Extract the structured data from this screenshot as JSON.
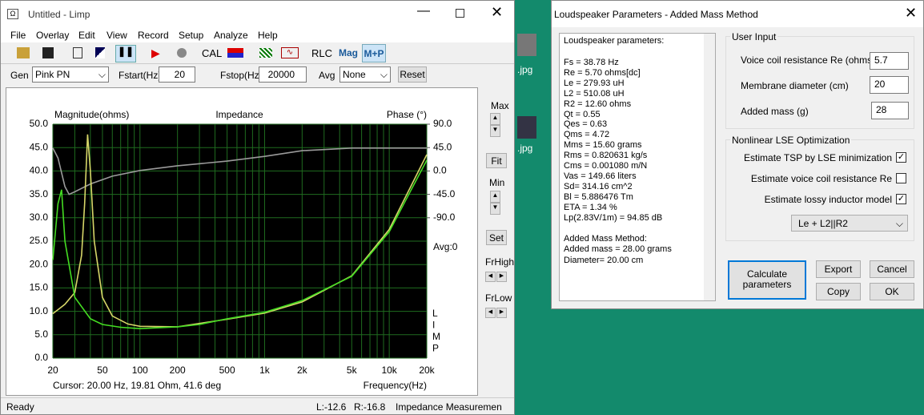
{
  "desktop": {
    "files": [
      ".jpg",
      ".jpg"
    ]
  },
  "limp": {
    "title": "Untitled - Limp",
    "menu": [
      "File",
      "Overlay",
      "Edit",
      "View",
      "Record",
      "Setup",
      "Analyze",
      "Help"
    ],
    "toolbar": {
      "cal": "CAL",
      "rlc": "RLC",
      "mag": "Mag",
      "mp": "M+P"
    },
    "gen": {
      "label": "Gen",
      "signal": "Pink PN",
      "fstart_label": "Fstart(Hz)",
      "fstart": 20,
      "fstop_label": "Fstop(Hz)",
      "fstop": 20000,
      "avg_label": "Avg",
      "avg": "None",
      "reset": "Reset"
    },
    "chart": {
      "type": "line",
      "title": "Impedance",
      "y_label": "Magnitude(ohms)",
      "y2_label": "Phase (°)",
      "avg": "Avg:0",
      "brand": [
        "L",
        "I",
        "M",
        "P"
      ],
      "cursor": "Cursor: 20.00 Hz, 19.81 Ohm, 41.6 deg",
      "x_label": "Frequency(Hz)",
      "xscale": "log",
      "xlim": [
        20,
        20000
      ],
      "ylim": [
        0,
        50
      ],
      "y2lim": [
        -360,
        90
      ],
      "xticks": [
        20,
        50,
        100,
        200,
        500,
        {
          "value": 1000,
          "label": "1k"
        },
        {
          "value": 2000,
          "label": "2k"
        },
        {
          "value": 5000,
          "label": "5k"
        },
        {
          "value": 10000,
          "label": "10k"
        },
        {
          "value": 20000,
          "label": "20k"
        }
      ],
      "xgrid": [
        30,
        40,
        60,
        70,
        80,
        90,
        300,
        400,
        600,
        700,
        800,
        900,
        3000,
        4000,
        6000,
        7000,
        8000,
        9000
      ],
      "yticks": [
        {
          "value": 0,
          "label": "0.0"
        },
        {
          "value": 5,
          "label": "5.0"
        },
        {
          "value": 10,
          "label": "10.0"
        },
        {
          "value": 15,
          "label": "15.0"
        },
        {
          "value": 20,
          "label": "20.0"
        },
        {
          "value": 25,
          "label": "25.0"
        },
        {
          "value": 30,
          "label": "30.0"
        },
        {
          "value": 35,
          "label": "35.0"
        },
        {
          "value": 40,
          "label": "40.0"
        },
        {
          "value": 45,
          "label": "45.0"
        },
        {
          "value": 50,
          "label": "50.0"
        }
      ],
      "y2ticks": [
        {
          "value": 90,
          "label": "90.0"
        },
        {
          "value": 45,
          "label": "45.0"
        },
        {
          "value": 0,
          "label": "0.0"
        },
        {
          "value": -45,
          "label": "-45.0"
        },
        {
          "value": -90,
          "label": "-90.0"
        }
      ],
      "grid": true,
      "series": [
        {
          "color": "#9a9a9a",
          "axis": "y2",
          "x": [
            20,
            22,
            25,
            27,
            30,
            40,
            60,
            100,
            200,
            500,
            1000,
            2000,
            5000,
            20000
          ],
          "values": [
            44,
            25,
            -30,
            -45,
            -40,
            -25,
            -10,
            1,
            10,
            19,
            28,
            39,
            44,
            44
          ]
        },
        {
          "color": "#d6d668",
          "x": [
            20,
            25,
            30,
            34,
            36,
            38,
            40,
            43,
            50,
            60,
            80,
            100,
            200,
            500,
            1000,
            2000,
            5000,
            10000,
            20000
          ],
          "values": [
            9.5,
            11.5,
            14,
            22,
            33,
            47.8,
            40,
            25,
            13,
            9,
            7.3,
            6.8,
            6.7,
            8.3,
            9.6,
            12,
            17.6,
            27.5,
            43.5
          ]
        },
        {
          "color": "#44dd22",
          "x": [
            20,
            22,
            23.5,
            25,
            30,
            40,
            50,
            70,
            100,
            200,
            300,
            500,
            1000,
            2000,
            5000,
            10000,
            15000,
            20000
          ],
          "values": [
            21,
            33,
            36,
            25,
            13,
            8.4,
            7.2,
            6.6,
            6.3,
            6.7,
            7.2,
            8.4,
            9.8,
            12.3,
            17.5,
            27,
            36,
            42.3
          ]
        }
      ]
    },
    "side": {
      "max": "Max",
      "fit": "Fit",
      "min": "Min",
      "set": "Set",
      "frhigh": "FrHigh",
      "frlow": "FrLow"
    },
    "status": {
      "ready": "Ready",
      "left": "L:-12.6",
      "right": "R:-16.8",
      "mode": "Impedance Measuremen"
    }
  },
  "dialog": {
    "title": "Loudspeaker Parameters - Added Mass Method",
    "report": {
      "heading": "Loudspeaker parameters:",
      "params": [
        "Fs  = 38.78 Hz",
        "Re  = 5.70 ohms[dc]",
        "Le  = 279.93 uH",
        "L2  = 510.08 uH",
        "R2  = 12.60 ohms",
        "Qt  = 0.55",
        "Qes = 0.63",
        "Qms = 4.72",
        "Mms = 15.60 grams",
        "Rms = 0.820631 kg/s",
        "Cms = 0.001080 m/N",
        "Vas = 149.66 liters",
        "Sd= 314.16 cm^2",
        "Bl  = 5.886476 Tm",
        "ETA = 1.34 %",
        "Lp(2.83V/1m) = 94.85 dB"
      ],
      "method": [
        "Added Mass Method:",
        "Added mass = 28.00 grams",
        "Diameter= 20.00 cm"
      ]
    },
    "user_input": {
      "label": "User Input",
      "re_label": "Voice coil resistance Re (ohms)",
      "re": 5.7,
      "diam_label": "Membrane diameter (cm)",
      "diam": 20,
      "mass_label": "Added mass (g)",
      "mass": 28
    },
    "lse": {
      "label": "Nonlinear LSE Optimization",
      "options": [
        {
          "label": "Estimate TSP by LSE minimization",
          "checked": true
        },
        {
          "label": "Estimate voice coil resistance Re",
          "checked": false
        },
        {
          "label": "Estimate lossy inductor model",
          "checked": true
        }
      ],
      "model": "Le + L2||R2"
    },
    "buttons": {
      "calculate": "Calculate parameters",
      "export": "Export",
      "cancel": "Cancel",
      "copy": "Copy",
      "ok": "OK"
    }
  }
}
